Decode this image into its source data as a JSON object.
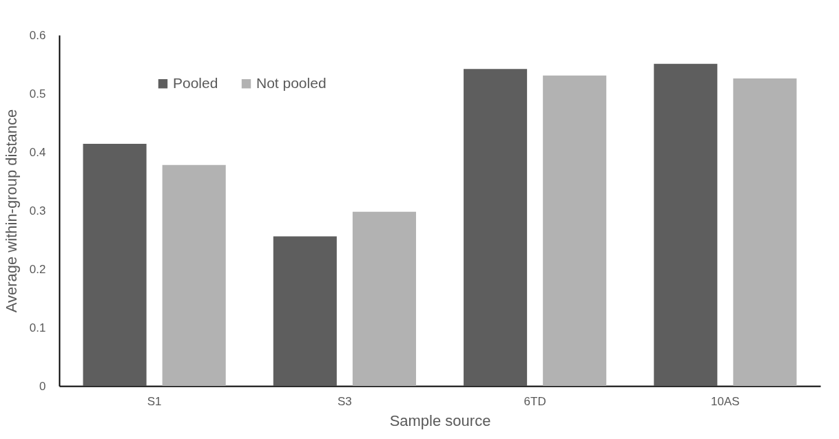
{
  "chart_data": {
    "type": "bar",
    "xlabel": "Sample source",
    "ylabel": "Average within-group distance",
    "categories": [
      "S1",
      "S3",
      "6TD",
      "10AS"
    ],
    "series": [
      {
        "name": "Pooled",
        "color": "#5e5e5e",
        "values": [
          0.414,
          0.256,
          0.542,
          0.551
        ]
      },
      {
        "name": "Not pooled",
        "color": "#b2b2b2",
        "values": [
          0.378,
          0.298,
          0.531,
          0.526
        ]
      }
    ],
    "ylim": [
      0,
      0.6
    ],
    "yticks": [
      0,
      0.1,
      0.2,
      0.3,
      0.4,
      0.5,
      0.6
    ],
    "grid": false,
    "legend": "top left"
  }
}
